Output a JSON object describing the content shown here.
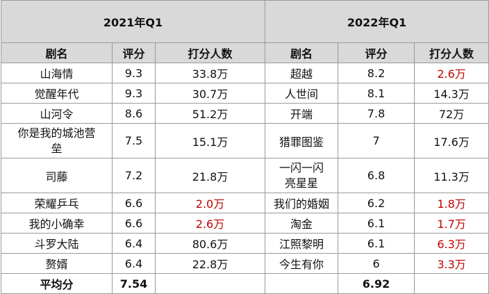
{
  "left": {
    "title": "2021年Q1",
    "columns": [
      "剧名",
      "评分",
      "打分人数"
    ],
    "rows": [
      {
        "name": "山海情",
        "score": "9.3",
        "viewers": "33.8万"
      },
      {
        "name": "觉醒年代",
        "score": "9.3",
        "viewers": "30.7万"
      },
      {
        "name": "山河令",
        "score": "8.6",
        "viewers": "51.2万"
      },
      {
        "name": "你是我的城池营垒",
        "score": "7.5",
        "viewers": "15.1万"
      },
      {
        "name": "司藤",
        "score": "7.2",
        "viewers": "21.8万"
      },
      {
        "name": "荣耀乒乓",
        "score": "6.6",
        "viewers": "2.0万",
        "viewers_color": "#c00000"
      },
      {
        "name": "我的小确幸",
        "score": "6.6",
        "viewers": "2.6万",
        "viewers_color": "#c00000"
      },
      {
        "name": "斗罗大陆",
        "score": "6.4",
        "viewers": "80.6万"
      },
      {
        "name": "赘婿",
        "score": "6.4",
        "viewers": "22.8万"
      }
    ]
  },
  "right": {
    "title": "2022年Q1",
    "columns": [
      "剧名",
      "评分",
      "打分人数"
    ],
    "rows": [
      {
        "name": "超越",
        "score": "8.2",
        "viewers": "2.6万",
        "viewers_color": "#c00000"
      },
      {
        "name": "人世间",
        "score": "8.1",
        "viewers": "14.3万"
      },
      {
        "name": "开端",
        "score": "7.8",
        "viewers": "72万"
      },
      {
        "name": "猎罪图鉴",
        "score": "7",
        "viewers": "17.6万"
      },
      {
        "name": "一闪一闪亮星星",
        "score": "6.8",
        "viewers": "11.3万"
      },
      {
        "name": "我们的婚姻",
        "score": "6.2",
        "viewers": "1.8万",
        "viewers_color": "#c00000"
      },
      {
        "name": "淘金",
        "score": "6.1",
        "viewers": "1.7万",
        "viewers_color": "#c00000"
      },
      {
        "name": "江照黎明",
        "score": "6.1",
        "viewers": "6.3万",
        "viewers_color": "#c00000"
      },
      {
        "name": "今生有你",
        "score": "6",
        "viewers": "3.3万",
        "viewers_color": "#c00000"
      }
    ]
  },
  "average": {
    "label": "平均分",
    "left": "7.54",
    "right": "6.92"
  }
}
